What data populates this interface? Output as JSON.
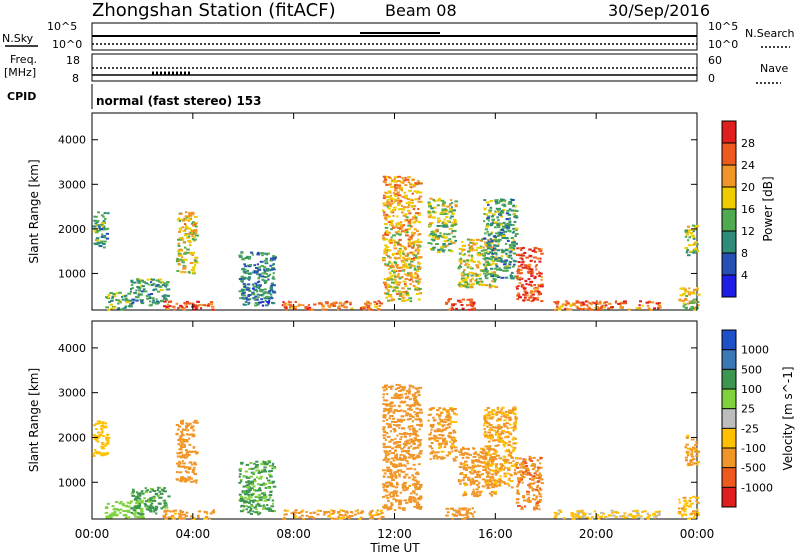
{
  "header": {
    "title": "Zhongshan Station (fitACF)",
    "beam": "Beam 08",
    "date": "30/Sep/2016"
  },
  "status_panels": {
    "nsky_label": "N.Sky",
    "nsearch_label": "N.Search",
    "freq_label": "Freq.",
    "freq_unit": "[MHz]",
    "nave_label": "Nave",
    "cpid_label": "CPID",
    "cpid_text": "normal (fast stereo) 153",
    "noise_ticks": [
      "10^5",
      "10^0"
    ],
    "freq_ticks": [
      "18",
      "8"
    ],
    "nave_ticks": [
      "60",
      "0"
    ]
  },
  "x_axis": {
    "label": "Time UT",
    "ticks": [
      "00:00",
      "04:00",
      "08:00",
      "12:00",
      "16:00",
      "20:00",
      "00:00"
    ],
    "tick_hours": [
      0,
      4,
      8,
      12,
      16,
      20,
      24
    ]
  },
  "colors": {
    "power_scale": [
      "#1e1ee6",
      "#2850b4",
      "#2f8c78",
      "#50aa50",
      "#eecc00",
      "#f09628",
      "#ee5a1e",
      "#e01e1e"
    ],
    "velocity_scale": [
      "#e01e1e",
      "#ee5a1e",
      "#f09628",
      "#ffc000",
      "#bdbdbd",
      "#7fd23c",
      "#3c9650",
      "#3c78b4",
      "#1e50c8"
    ]
  },
  "chart_data": [
    {
      "type": "heatmap",
      "title": "",
      "xlabel": "Time UT",
      "ylabel": "Slant Range [km]",
      "xlim": [
        0,
        24
      ],
      "ylim": [
        180,
        4600
      ],
      "y_ticks": [
        "4000",
        "3000",
        "2000",
        "1000"
      ],
      "y_tick_values": [
        4000,
        3000,
        2000,
        1000
      ],
      "colorbar": {
        "label": "Power [dB]",
        "ticks": [
          "28",
          "24",
          "20",
          "16",
          "12",
          "8",
          "4"
        ],
        "tick_values": [
          28,
          24,
          20,
          16,
          12,
          8,
          4
        ],
        "range": [
          0,
          30
        ]
      },
      "regions": [
        {
          "t": [
            0.0,
            0.6
          ],
          "r": [
            1600,
            2400
          ],
          "level": 12
        },
        {
          "t": [
            0.5,
            1.5
          ],
          "r": [
            200,
            600
          ],
          "level": 14
        },
        {
          "t": [
            1.5,
            3.0
          ],
          "r": [
            300,
            900
          ],
          "level": 12
        },
        {
          "t": [
            2.8,
            4.8
          ],
          "r": [
            200,
            400
          ],
          "level": 26
        },
        {
          "t": [
            3.3,
            4.1
          ],
          "r": [
            1000,
            2400
          ],
          "level": 18
        },
        {
          "t": [
            5.8,
            7.2
          ],
          "r": [
            300,
            1500
          ],
          "level": 10
        },
        {
          "t": [
            7.5,
            11.5
          ],
          "r": [
            200,
            400
          ],
          "level": 24
        },
        {
          "t": [
            11.5,
            13.0
          ],
          "r": [
            400,
            3200
          ],
          "level": 20
        },
        {
          "t": [
            13.3,
            14.4
          ],
          "r": [
            1500,
            2700
          ],
          "level": 16
        },
        {
          "t": [
            14.0,
            15.2
          ],
          "r": [
            200,
            450
          ],
          "level": 27
        },
        {
          "t": [
            14.5,
            16.0
          ],
          "r": [
            700,
            1800
          ],
          "level": 18
        },
        {
          "t": [
            15.5,
            16.8
          ],
          "r": [
            900,
            2700
          ],
          "level": 12
        },
        {
          "t": [
            16.8,
            17.8
          ],
          "r": [
            400,
            1600
          ],
          "level": 27
        },
        {
          "t": [
            18.3,
            22.5
          ],
          "r": [
            200,
            400
          ],
          "level": 24
        },
        {
          "t": [
            23.2,
            24.0
          ],
          "r": [
            200,
            700
          ],
          "level": 18
        },
        {
          "t": [
            23.5,
            24.0
          ],
          "r": [
            1400,
            2100
          ],
          "level": 16
        }
      ]
    },
    {
      "type": "heatmap",
      "title": "",
      "xlabel": "Time UT",
      "ylabel": "Slant Range [km]",
      "xlim": [
        0,
        24
      ],
      "ylim": [
        180,
        4600
      ],
      "y_ticks": [
        "4000",
        "3000",
        "2000",
        "1000"
      ],
      "y_tick_values": [
        4000,
        3000,
        2000,
        1000
      ],
      "colorbar": {
        "label": "Velocity [m s^-1]",
        "ticks": [
          "1000",
          "500",
          "100",
          "25",
          "-25",
          "-100",
          "-500",
          "-1000"
        ],
        "tick_values": [
          1000,
          500,
          100,
          25,
          -25,
          -100,
          -500,
          -1000
        ]
      },
      "regions": [
        {
          "t": [
            0.0,
            0.6
          ],
          "r": [
            1600,
            2400
          ],
          "level": -50
        },
        {
          "t": [
            0.5,
            2.0
          ],
          "r": [
            200,
            600
          ],
          "level": 60
        },
        {
          "t": [
            1.5,
            3.0
          ],
          "r": [
            300,
            900
          ],
          "level": 150
        },
        {
          "t": [
            2.8,
            4.8
          ],
          "r": [
            200,
            400
          ],
          "level": -150
        },
        {
          "t": [
            3.3,
            4.1
          ],
          "r": [
            1000,
            2400
          ],
          "level": -300
        },
        {
          "t": [
            5.8,
            7.2
          ],
          "r": [
            300,
            1500
          ],
          "level": 120
        },
        {
          "t": [
            7.5,
            11.5
          ],
          "r": [
            200,
            400
          ],
          "level": -150
        },
        {
          "t": [
            11.5,
            13.0
          ],
          "r": [
            400,
            3200
          ],
          "level": -200
        },
        {
          "t": [
            13.3,
            14.4
          ],
          "r": [
            1500,
            2700
          ],
          "level": -150
        },
        {
          "t": [
            14.0,
            15.2
          ],
          "r": [
            200,
            450
          ],
          "level": -200
        },
        {
          "t": [
            14.5,
            16.0
          ],
          "r": [
            700,
            1800
          ],
          "level": -180
        },
        {
          "t": [
            15.5,
            16.8
          ],
          "r": [
            900,
            2700
          ],
          "level": -120
        },
        {
          "t": [
            16.8,
            17.8
          ],
          "r": [
            400,
            1600
          ],
          "level": -400
        },
        {
          "t": [
            18.3,
            22.5
          ],
          "r": [
            200,
            400
          ],
          "level": -30
        },
        {
          "t": [
            23.2,
            24.0
          ],
          "r": [
            200,
            700
          ],
          "level": -80
        },
        {
          "t": [
            23.5,
            24.0
          ],
          "r": [
            1400,
            2100
          ],
          "level": -150
        }
      ]
    }
  ]
}
